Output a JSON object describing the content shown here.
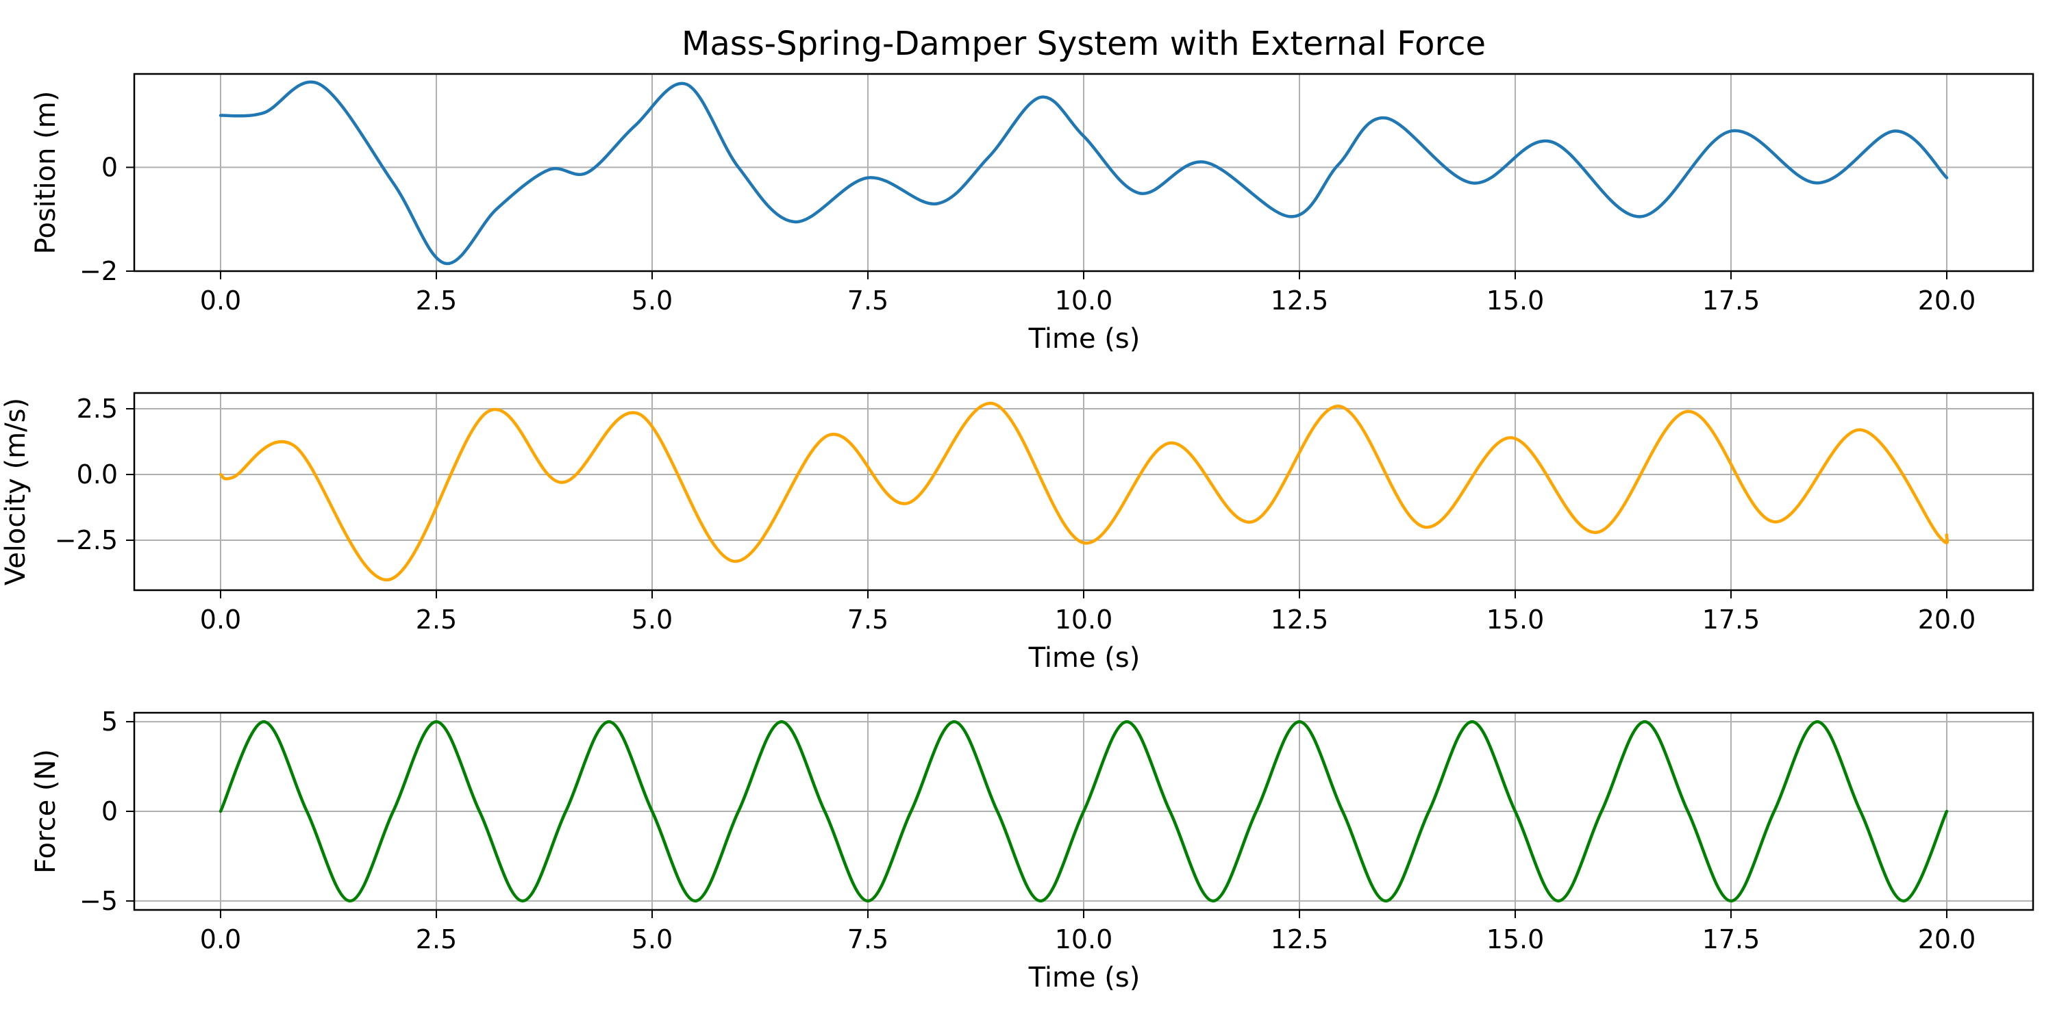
{
  "chart_data": [
    {
      "type": "line",
      "title": "Mass-Spring-Damper System with External Force",
      "xlabel": "Time (s)",
      "ylabel": "Position (m)",
      "xlim": [
        -1.0,
        21.0
      ],
      "ylim": [
        -2.0,
        1.8
      ],
      "grid": true,
      "color": "#1f77b4",
      "xticks": [
        0,
        2.5,
        5,
        7.5,
        10,
        12.5,
        15,
        17.5,
        20
      ],
      "xtick_labels": [
        "0.0",
        "2.5",
        "5.0",
        "7.5",
        "10.0",
        "12.5",
        "15.0",
        "17.5",
        "20.0"
      ],
      "yticks": [
        -2,
        0
      ],
      "ytick_labels": [
        "−2",
        "0"
      ],
      "x": [
        0,
        0.5,
        1.15,
        2.0,
        2.6,
        3.2,
        3.8,
        4.25,
        4.8,
        5.4,
        6.0,
        6.65,
        7.5,
        8.3,
        8.9,
        9.5,
        10.0,
        10.65,
        11.4,
        12.4,
        12.95,
        13.5,
        14.5,
        15.4,
        16.45,
        17.5,
        18.5,
        19.4,
        20.0
      ],
      "y": [
        1.0,
        1.05,
        1.6,
        -0.3,
        -1.85,
        -0.8,
        -0.05,
        -0.1,
        0.8,
        1.6,
        0.0,
        -1.05,
        -0.2,
        -0.7,
        0.2,
        1.35,
        0.6,
        -0.5,
        0.1,
        -0.95,
        0.05,
        0.95,
        -0.3,
        0.5,
        -0.95,
        0.7,
        -0.3,
        0.7,
        -0.2
      ]
    },
    {
      "type": "line",
      "xlabel": "Time (s)",
      "ylabel": "Velocity (m/s)",
      "xlim": [
        -1.0,
        21.0
      ],
      "ylim": [
        -4.4,
        3.1
      ],
      "grid": true,
      "color": "#ffa500",
      "xticks": [
        0,
        2.5,
        5,
        7.5,
        10,
        12.5,
        15,
        17.5,
        20
      ],
      "xtick_labels": [
        "0.0",
        "2.5",
        "5.0",
        "7.5",
        "10.0",
        "12.5",
        "15.0",
        "17.5",
        "20.0"
      ],
      "yticks": [
        -2.5,
        0,
        2.5
      ],
      "ytick_labels": [
        "−2.5",
        "0.0",
        "2.5"
      ],
      "x": [
        0,
        0.15,
        0.85,
        1.95,
        3.1,
        3.95,
        4.85,
        5.95,
        7.05,
        7.95,
        8.95,
        10.0,
        11.0,
        11.95,
        12.95,
        13.95,
        14.95,
        15.95,
        17.0,
        18.0,
        19.0,
        19.9,
        20.0
      ],
      "y": [
        0.0,
        -0.1,
        1.1,
        -4.0,
        2.4,
        -0.3,
        2.3,
        -3.3,
        1.5,
        -1.1,
        2.7,
        -2.6,
        1.2,
        -1.8,
        2.6,
        -2.0,
        1.4,
        -2.2,
        2.4,
        -1.8,
        1.7,
        -2.3,
        -2.3
      ]
    },
    {
      "type": "line",
      "xlabel": "Time (s)",
      "ylabel": "Force (N)",
      "xlim": [
        -1.0,
        21.0
      ],
      "ylim": [
        -5.5,
        5.5
      ],
      "grid": true,
      "color": "#008000",
      "amplitude": 5,
      "period_s": 2,
      "xticks": [
        0,
        2.5,
        5,
        7.5,
        10,
        12.5,
        15,
        17.5,
        20
      ],
      "xtick_labels": [
        "0.0",
        "2.5",
        "5.0",
        "7.5",
        "10.0",
        "12.5",
        "15.0",
        "17.5",
        "20.0"
      ],
      "yticks": [
        -5,
        0,
        5
      ],
      "ytick_labels": [
        "−5",
        "0",
        "5"
      ],
      "x": [
        0,
        0.5,
        1.0,
        1.5,
        2.0,
        2.5,
        3.0,
        3.5,
        4.0,
        4.5,
        5.0,
        5.5,
        6.0,
        6.5,
        7.0,
        7.5,
        8.0,
        8.5,
        9.0,
        9.5,
        10.0,
        10.5,
        11.0,
        11.5,
        12.0,
        12.5,
        13.0,
        13.5,
        14.0,
        14.5,
        15.0,
        15.5,
        16.0,
        16.5,
        17.0,
        17.5,
        18.0,
        18.5,
        19.0,
        19.5,
        20.0
      ],
      "y": [
        0,
        5,
        0,
        -5,
        0,
        5,
        0,
        -5,
        0,
        5,
        0,
        -5,
        0,
        5,
        0,
        -5,
        0,
        5,
        0,
        -5,
        0,
        5,
        0,
        -5,
        0,
        5,
        0,
        -5,
        0,
        5,
        0,
        -5,
        0,
        5,
        0,
        -5,
        0,
        5,
        0,
        -5,
        0
      ]
    }
  ]
}
